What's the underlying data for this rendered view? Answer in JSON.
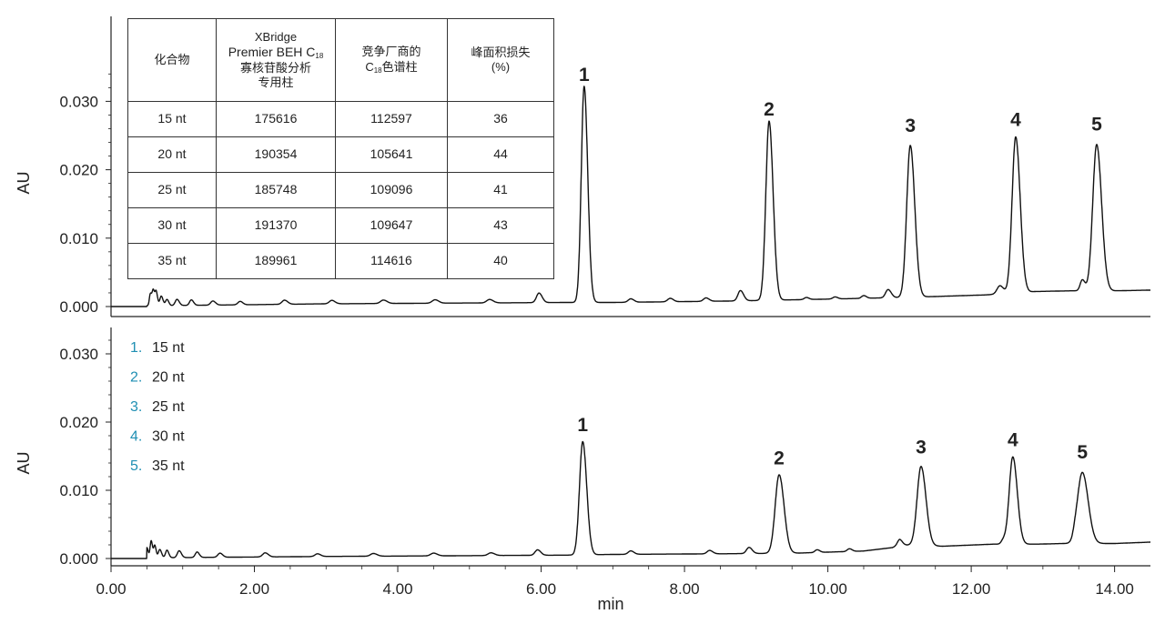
{
  "table": {
    "headers": [
      "化合物",
      "XBridge",
      "Premier BEH C",
      "18",
      "寡核苷酸分析",
      "专用柱",
      "竞争厂商的",
      "C",
      "18",
      "色谱柱",
      "峰面积损失",
      "(%)"
    ],
    "rows": [
      [
        "15 nt",
        "175616",
        "112597",
        "36"
      ],
      [
        "20 nt",
        "190354",
        "105641",
        "44"
      ],
      [
        "25 nt",
        "185748",
        "109096",
        "41"
      ],
      [
        "30 nt",
        "191370",
        "109647",
        "43"
      ],
      [
        "35 nt",
        "189961",
        "114616",
        "40"
      ]
    ]
  },
  "legend": [
    {
      "num": "1.",
      "label": "15 nt"
    },
    {
      "num": "2.",
      "label": "20 nt"
    },
    {
      "num": "3.",
      "label": "25 nt"
    },
    {
      "num": "4.",
      "label": "30 nt"
    },
    {
      "num": "5.",
      "label": "35 nt"
    }
  ],
  "chart_data": [
    {
      "type": "line",
      "xlabel": "",
      "ylabel": "AU",
      "xlim": [
        0,
        14.5
      ],
      "ylim": [
        0,
        0.034
      ],
      "yticks": [
        "0.000",
        "0.010",
        "0.020",
        "0.030"
      ],
      "yticks_values": [
        0,
        0.01,
        0.02,
        0.03
      ],
      "color": "#111111",
      "baseline_points": [
        [
          0.5,
          0.0001
        ],
        [
          3,
          0.0004
        ],
        [
          6.4,
          0.0006
        ],
        [
          7.0,
          0.0006
        ],
        [
          8.6,
          0.0008
        ],
        [
          9.6,
          0.001
        ],
        [
          10.5,
          0.0012
        ],
        [
          11.3,
          0.0014
        ],
        [
          12.2,
          0.0017
        ],
        [
          12.9,
          0.0022
        ],
        [
          13.4,
          0.0023
        ],
        [
          14.0,
          0.0023
        ],
        [
          14.5,
          0.0024
        ]
      ],
      "peaks": [
        {
          "x": 0.55,
          "h": 0.0018,
          "w": 0.015
        },
        {
          "x": 0.59,
          "h": 0.0022,
          "w": 0.015
        },
        {
          "x": 0.63,
          "h": 0.002,
          "w": 0.015
        },
        {
          "x": 0.7,
          "h": 0.0014,
          "w": 0.02
        },
        {
          "x": 0.78,
          "h": 0.0009,
          "w": 0.02
        },
        {
          "x": 0.92,
          "h": 0.0009,
          "w": 0.025
        },
        {
          "x": 1.12,
          "h": 0.0008,
          "w": 0.025
        },
        {
          "x": 1.42,
          "h": 0.0006,
          "w": 0.03
        },
        {
          "x": 1.8,
          "h": 0.0005,
          "w": 0.03
        },
        {
          "x": 2.42,
          "h": 0.0006,
          "w": 0.035
        },
        {
          "x": 3.08,
          "h": 0.0005,
          "w": 0.035
        },
        {
          "x": 3.8,
          "h": 0.0005,
          "w": 0.04
        },
        {
          "x": 4.52,
          "h": 0.0005,
          "w": 0.04
        },
        {
          "x": 5.28,
          "h": 0.0005,
          "w": 0.04
        },
        {
          "x": 5.97,
          "h": 0.0014,
          "w": 0.035
        },
        {
          "x": 6.6,
          "h": 0.0316,
          "w": 0.04
        },
        {
          "x": 7.25,
          "h": 0.0005,
          "w": 0.035
        },
        {
          "x": 7.8,
          "h": 0.0005,
          "w": 0.035
        },
        {
          "x": 8.3,
          "h": 0.0005,
          "w": 0.035
        },
        {
          "x": 8.78,
          "h": 0.0015,
          "w": 0.035
        },
        {
          "x": 9.18,
          "h": 0.0262,
          "w": 0.045
        },
        {
          "x": 9.7,
          "h": 0.0003,
          "w": 0.03
        },
        {
          "x": 10.1,
          "h": 0.0003,
          "w": 0.03
        },
        {
          "x": 10.5,
          "h": 0.0004,
          "w": 0.03
        },
        {
          "x": 10.84,
          "h": 0.0012,
          "w": 0.035
        },
        {
          "x": 11.15,
          "h": 0.0222,
          "w": 0.05
        },
        {
          "x": 12.4,
          "h": 0.0012,
          "w": 0.04
        },
        {
          "x": 12.62,
          "h": 0.0228,
          "w": 0.05
        },
        {
          "x": 13.55,
          "h": 0.0016,
          "w": 0.03
        },
        {
          "x": 13.75,
          "h": 0.0214,
          "w": 0.055
        }
      ],
      "peak_labels": [
        {
          "text": "1",
          "x": 6.6,
          "y": 0.033
        },
        {
          "text": "2",
          "x": 9.18,
          "y": 0.0279
        },
        {
          "text": "3",
          "x": 11.15,
          "y": 0.0255
        },
        {
          "text": "4",
          "x": 12.62,
          "y": 0.0264
        },
        {
          "text": "5",
          "x": 13.75,
          "y": 0.0257
        }
      ]
    },
    {
      "type": "line",
      "xlabel": "min",
      "ylabel": "AU",
      "xlim": [
        0,
        14.5
      ],
      "ylim": [
        0,
        0.032
      ],
      "xticks": [
        "0.00",
        "2.00",
        "4.00",
        "6.00",
        "8.00",
        "10.00",
        "12.00",
        "14.00"
      ],
      "xticks_values": [
        0,
        2,
        4,
        6,
        8,
        10,
        12,
        14
      ],
      "yticks": [
        "0.000",
        "0.010",
        "0.020",
        "0.030"
      ],
      "yticks_values": [
        0,
        0.01,
        0.02,
        0.03
      ],
      "color": "#111111",
      "baseline_points": [
        [
          0.5,
          0.0001
        ],
        [
          3,
          0.0003
        ],
        [
          6.4,
          0.0005
        ],
        [
          7.0,
          0.0006
        ],
        [
          8.6,
          0.0007
        ],
        [
          9.6,
          0.0008
        ],
        [
          10.5,
          0.0011
        ],
        [
          10.9,
          0.0016
        ],
        [
          11.0,
          0.002
        ],
        [
          11.6,
          0.0018
        ],
        [
          12.3,
          0.0021
        ],
        [
          12.9,
          0.0021
        ],
        [
          13.3,
          0.0022
        ],
        [
          14.0,
          0.0022
        ],
        [
          14.5,
          0.0024
        ]
      ],
      "peaks": [
        {
          "x": 0.5,
          "h": 0.0015,
          "w": 0.015
        },
        {
          "x": 0.56,
          "h": 0.0025,
          "w": 0.015
        },
        {
          "x": 0.61,
          "h": 0.0018,
          "w": 0.015
        },
        {
          "x": 0.68,
          "h": 0.0012,
          "w": 0.02
        },
        {
          "x": 0.78,
          "h": 0.0011,
          "w": 0.02
        },
        {
          "x": 0.95,
          "h": 0.001,
          "w": 0.025
        },
        {
          "x": 1.2,
          "h": 0.0008,
          "w": 0.025
        },
        {
          "x": 1.52,
          "h": 0.0006,
          "w": 0.03
        },
        {
          "x": 2.15,
          "h": 0.0006,
          "w": 0.035
        },
        {
          "x": 2.88,
          "h": 0.0004,
          "w": 0.035
        },
        {
          "x": 3.66,
          "h": 0.0004,
          "w": 0.04
        },
        {
          "x": 4.5,
          "h": 0.0004,
          "w": 0.04
        },
        {
          "x": 5.3,
          "h": 0.0004,
          "w": 0.04
        },
        {
          "x": 5.95,
          "h": 0.0008,
          "w": 0.035
        },
        {
          "x": 6.58,
          "h": 0.0166,
          "w": 0.045
        },
        {
          "x": 7.25,
          "h": 0.0005,
          "w": 0.035
        },
        {
          "x": 8.35,
          "h": 0.0005,
          "w": 0.035
        },
        {
          "x": 8.9,
          "h": 0.0009,
          "w": 0.035
        },
        {
          "x": 9.32,
          "h": 0.0115,
          "w": 0.055
        },
        {
          "x": 9.85,
          "h": 0.0004,
          "w": 0.03
        },
        {
          "x": 10.3,
          "h": 0.0004,
          "w": 0.03
        },
        {
          "x": 11.0,
          "h": 0.0008,
          "w": 0.03
        },
        {
          "x": 11.3,
          "h": 0.0116,
          "w": 0.055
        },
        {
          "x": 12.45,
          "h": 0.0006,
          "w": 0.03
        },
        {
          "x": 12.58,
          "h": 0.0128,
          "w": 0.05
        },
        {
          "x": 13.45,
          "h": 0.0008,
          "w": 0.03
        },
        {
          "x": 13.55,
          "h": 0.0104,
          "w": 0.065
        }
      ],
      "peak_labels": [
        {
          "text": "1",
          "x": 6.58,
          "y": 0.0187
        },
        {
          "text": "2",
          "x": 9.32,
          "y": 0.0138
        },
        {
          "text": "3",
          "x": 11.3,
          "y": 0.0154
        },
        {
          "text": "4",
          "x": 12.58,
          "y": 0.0165
        },
        {
          "text": "5",
          "x": 13.55,
          "y": 0.0147
        }
      ]
    }
  ]
}
